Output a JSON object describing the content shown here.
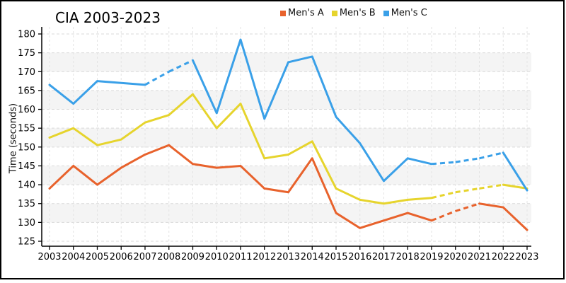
{
  "chart_data": {
    "type": "line",
    "title": "CIA 2003-2023",
    "ylabel": "Time (seconds)",
    "xlabel": "",
    "x": [
      2003,
      2004,
      2005,
      2006,
      2007,
      2008,
      2009,
      2010,
      2011,
      2012,
      2013,
      2014,
      2015,
      2016,
      2017,
      2018,
      2019,
      2020,
      2021,
      2022,
      2023
    ],
    "ylim": [
      125,
      180
    ],
    "ytick_step": 5,
    "grid": true,
    "legend_position": "top-center",
    "background_bands": true,
    "series": [
      {
        "name": "Men's A",
        "color": "#e8622c",
        "values": [
          139,
          145,
          140,
          144.5,
          148,
          150.5,
          145.5,
          144.5,
          145,
          139,
          138,
          147,
          132.5,
          128.5,
          130.5,
          132.5,
          130.5,
          133,
          135,
          134,
          128
        ],
        "dashed_segments": [
          [
            2019,
            2021
          ]
        ]
      },
      {
        "name": "Men's B",
        "color": "#e6d42d",
        "values": [
          152.5,
          155,
          150.5,
          152,
          156.5,
          158.5,
          164,
          155,
          161.5,
          147,
          148,
          151.5,
          139,
          136,
          135,
          136,
          136.5,
          138,
          139,
          140,
          139
        ],
        "dashed_segments": [
          [
            2019,
            2022
          ]
        ]
      },
      {
        "name": "Men's C",
        "color": "#3aa0e8",
        "values": [
          166.5,
          161.5,
          167.5,
          167,
          166.5,
          170,
          173,
          159,
          178.5,
          157.5,
          172.5,
          174,
          158,
          151,
          141,
          147,
          145.5,
          146,
          147,
          148.5,
          138.5
        ],
        "dashed_segments": [
          [
            2007,
            2009
          ],
          [
            2019,
            2022
          ]
        ]
      }
    ],
    "colors": {
      "band_fill": "#f4f4f4",
      "h_gridline": "#d9d9d9",
      "v_gridline": "#e3e3e3",
      "axis": "#000000",
      "frame": "#000000",
      "text": "#000000"
    }
  }
}
